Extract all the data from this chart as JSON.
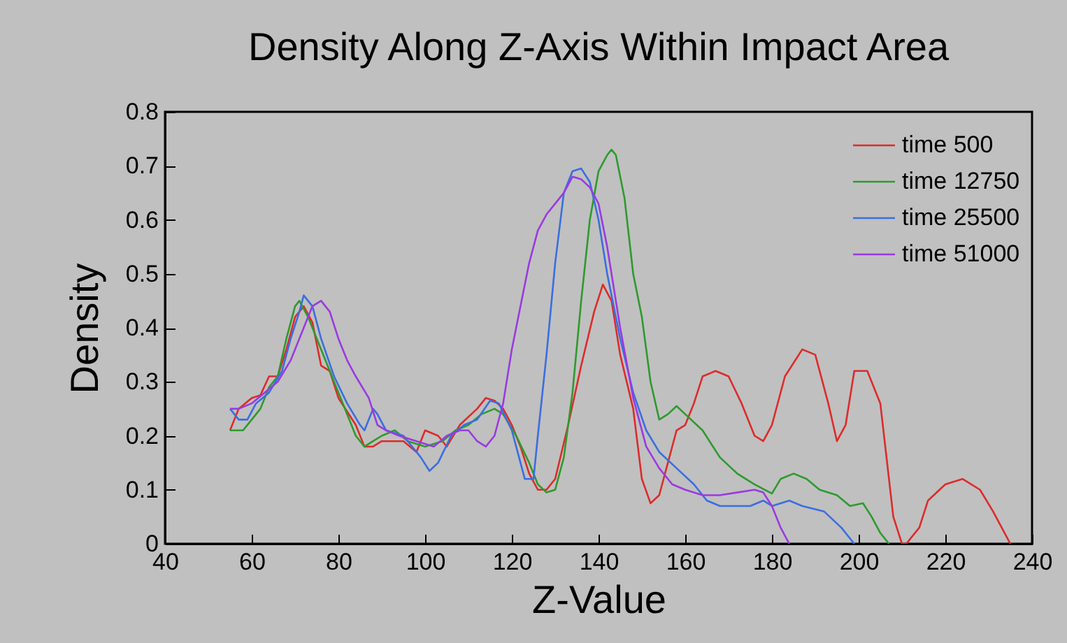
{
  "chart_data": {
    "type": "line",
    "title": "Density Along Z-Axis Within Impact Area",
    "xlabel": "Z-Value",
    "ylabel": "Density",
    "xlim": [
      40,
      240
    ],
    "xticks": [
      40,
      60,
      80,
      100,
      120,
      140,
      160,
      180,
      200,
      220,
      240
    ],
    "ylim": [
      0,
      0.8
    ],
    "yticks": [
      0,
      0.1,
      0.2,
      0.3,
      0.4,
      0.5,
      0.6,
      0.7,
      0.8
    ],
    "grid": false,
    "legend": "top right",
    "marker": "none",
    "line_style": "solid",
    "series": [
      {
        "name": "time 500",
        "color": "#dd2b2b",
        "x": [
          55,
          57,
          60,
          62,
          64,
          66,
          68,
          70,
          72,
          74,
          76,
          78,
          80,
          84,
          86,
          88,
          90,
          95,
          98,
          100,
          103,
          105,
          108,
          112,
          114,
          116,
          118,
          120,
          122,
          124,
          126,
          128,
          130,
          133,
          136,
          139,
          141,
          143,
          145,
          148,
          150,
          152,
          154,
          156,
          158,
          160,
          162,
          164,
          167,
          170,
          173,
          176,
          178,
          180,
          183,
          187,
          190,
          193,
          195,
          197,
          199,
          202,
          205,
          207,
          208,
          210,
          211,
          214,
          216,
          220,
          224,
          228,
          231,
          235
        ],
        "values": [
          0.21,
          0.25,
          0.27,
          0.275,
          0.31,
          0.31,
          0.36,
          0.42,
          0.44,
          0.41,
          0.33,
          0.32,
          0.27,
          0.22,
          0.18,
          0.18,
          0.19,
          0.19,
          0.17,
          0.21,
          0.2,
          0.18,
          0.22,
          0.25,
          0.27,
          0.265,
          0.25,
          0.22,
          0.18,
          0.13,
          0.1,
          0.1,
          0.12,
          0.22,
          0.33,
          0.43,
          0.48,
          0.45,
          0.35,
          0.25,
          0.12,
          0.075,
          0.09,
          0.15,
          0.21,
          0.22,
          0.26,
          0.31,
          0.32,
          0.31,
          0.26,
          0.2,
          0.19,
          0.22,
          0.31,
          0.36,
          0.35,
          0.26,
          0.19,
          0.22,
          0.32,
          0.32,
          0.26,
          0.12,
          0.05,
          0,
          0,
          0.03,
          0.08,
          0.11,
          0.12,
          0.1,
          0.06,
          0
        ]
      },
      {
        "name": "time 12750",
        "color": "#2e9a2e",
        "x": [
          55,
          58,
          60,
          62,
          64,
          66,
          68,
          70,
          71,
          73,
          75,
          77,
          79,
          82,
          84,
          86,
          88,
          90,
          93,
          96,
          100,
          104,
          107,
          110,
          113,
          116,
          118,
          121,
          124,
          126,
          128,
          130,
          132,
          134,
          136,
          138,
          140,
          142,
          143,
          144,
          146,
          148,
          150,
          152,
          154,
          156,
          158,
          160,
          164,
          168,
          172,
          176,
          180,
          182,
          185,
          188,
          191,
          195,
          198,
          201,
          203,
          205,
          207
        ],
        "values": [
          0.21,
          0.21,
          0.23,
          0.25,
          0.29,
          0.31,
          0.38,
          0.44,
          0.45,
          0.42,
          0.38,
          0.34,
          0.3,
          0.24,
          0.2,
          0.18,
          0.19,
          0.2,
          0.21,
          0.19,
          0.18,
          0.19,
          0.21,
          0.22,
          0.24,
          0.25,
          0.24,
          0.2,
          0.15,
          0.11,
          0.095,
          0.1,
          0.16,
          0.28,
          0.45,
          0.6,
          0.69,
          0.72,
          0.73,
          0.72,
          0.64,
          0.5,
          0.42,
          0.3,
          0.23,
          0.24,
          0.255,
          0.24,
          0.21,
          0.16,
          0.13,
          0.11,
          0.093,
          0.12,
          0.13,
          0.12,
          0.1,
          0.09,
          0.07,
          0.075,
          0.05,
          0.02,
          0
        ]
      },
      {
        "name": "time 25500",
        "color": "#3a6ee0",
        "x": [
          55,
          57,
          59,
          61,
          64,
          67,
          69,
          71,
          72,
          74,
          76,
          79,
          82,
          85,
          86,
          88,
          89,
          91,
          95,
          99,
          101,
          103,
          106,
          109,
          112,
          115,
          117,
          120,
          122,
          123,
          125,
          126,
          128,
          130,
          132,
          134,
          136,
          138,
          140,
          142,
          145,
          148,
          151,
          154,
          158,
          162,
          165,
          168,
          172,
          175,
          178,
          180,
          184,
          187,
          192,
          196,
          199
        ],
        "values": [
          0.25,
          0.23,
          0.23,
          0.26,
          0.28,
          0.32,
          0.38,
          0.43,
          0.46,
          0.44,
          0.38,
          0.31,
          0.26,
          0.22,
          0.21,
          0.25,
          0.24,
          0.21,
          0.2,
          0.16,
          0.135,
          0.15,
          0.2,
          0.22,
          0.23,
          0.265,
          0.26,
          0.21,
          0.15,
          0.12,
          0.12,
          0.2,
          0.35,
          0.52,
          0.65,
          0.69,
          0.695,
          0.67,
          0.6,
          0.5,
          0.38,
          0.28,
          0.21,
          0.17,
          0.14,
          0.11,
          0.08,
          0.07,
          0.07,
          0.07,
          0.08,
          0.07,
          0.08,
          0.07,
          0.06,
          0.03,
          0
        ]
      },
      {
        "name": "time 51000",
        "color": "#9a3ae0",
        "x": [
          55,
          57,
          60,
          63,
          66,
          69,
          72,
          74,
          76,
          78,
          80,
          82,
          84,
          87,
          89,
          91,
          94,
          98,
          102,
          105,
          108,
          110,
          112,
          114,
          116,
          118,
          120,
          122,
          124,
          126,
          128,
          130,
          132,
          134,
          136,
          138,
          140,
          142,
          145,
          148,
          151,
          154,
          157,
          160,
          164,
          168,
          172,
          176,
          178,
          180,
          182,
          184
        ],
        "values": [
          0.25,
          0.25,
          0.26,
          0.28,
          0.3,
          0.34,
          0.4,
          0.44,
          0.45,
          0.43,
          0.38,
          0.34,
          0.31,
          0.27,
          0.22,
          0.21,
          0.2,
          0.19,
          0.18,
          0.2,
          0.21,
          0.21,
          0.19,
          0.18,
          0.2,
          0.26,
          0.36,
          0.44,
          0.52,
          0.58,
          0.61,
          0.63,
          0.65,
          0.68,
          0.675,
          0.66,
          0.63,
          0.55,
          0.4,
          0.27,
          0.18,
          0.14,
          0.11,
          0.1,
          0.09,
          0.09,
          0.095,
          0.1,
          0.095,
          0.07,
          0.03,
          0
        ]
      }
    ]
  }
}
